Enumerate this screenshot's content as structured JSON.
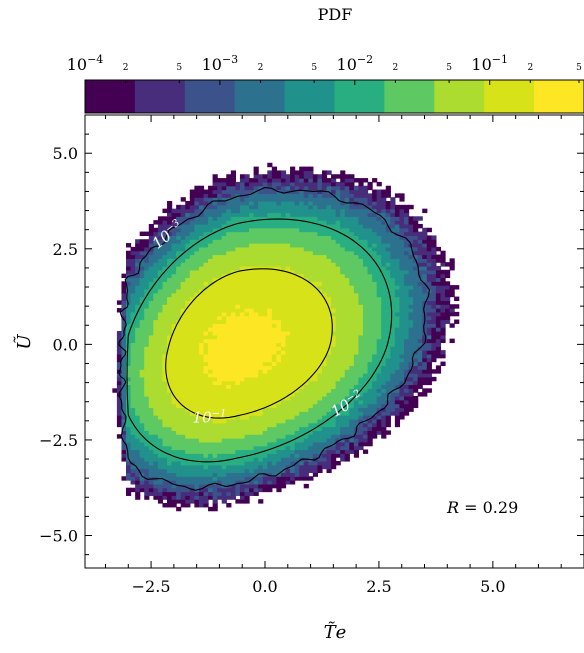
{
  "chart_data": {
    "type": "heatmap",
    "title": "PDF",
    "xlabel": "T̃e",
    "ylabel": "Ũ",
    "xlim": [
      -3.95,
      7.0
    ],
    "ylim": [
      -5.85,
      6.0
    ],
    "x_ticks": [
      -2.5,
      0.0,
      2.5,
      5.0
    ],
    "x_tick_labels": [
      "−2.5",
      "0.0",
      "2.5",
      "5.0"
    ],
    "y_ticks": [
      -5.0,
      -2.5,
      0.0,
      2.5,
      5.0
    ],
    "y_tick_labels": [
      "−5.0",
      "−2.5",
      "0.0",
      "2.5",
      "5.0"
    ],
    "grid": false,
    "colorbar": {
      "label": "PDF",
      "scale": "log",
      "range": [
        0.0001,
        0.5
      ],
      "major_labels": [
        {
          "base": "10",
          "exp": "−4",
          "value": 0.0001
        },
        {
          "base": "10",
          "exp": "−3",
          "value": 0.001
        },
        {
          "base": "10",
          "exp": "−2",
          "value": 0.01
        },
        {
          "base": "10",
          "exp": "−1",
          "value": 0.1
        }
      ],
      "minor_labels": [
        {
          "text": "2",
          "value": 0.0002
        },
        {
          "text": "5",
          "value": 0.0005
        },
        {
          "text": "2",
          "value": 0.002
        },
        {
          "text": "5",
          "value": 0.005
        },
        {
          "text": "2",
          "value": 0.02
        },
        {
          "text": "5",
          "value": 0.05
        },
        {
          "text": "2",
          "value": 0.2
        },
        {
          "text": "5",
          "value": 0.5
        }
      ],
      "colors": [
        "#440154",
        "#472d7b",
        "#3b528b",
        "#2c728e",
        "#21918c",
        "#28ae80",
        "#5ec962",
        "#addc30",
        "#d8e219",
        "#fde725"
      ]
    },
    "distribution": {
      "center": [
        -0.6,
        -0.1
      ],
      "correlation_R": 0.29
    },
    "contour_lines": [
      {
        "level": 0.001,
        "base": "10",
        "exp": "−3"
      },
      {
        "level": 0.01,
        "base": "10",
        "exp": "−2"
      },
      {
        "level": 0.1,
        "base": "10",
        "exp": "−1"
      }
    ],
    "annotation": {
      "var": "R",
      "text": " = 0.29"
    }
  }
}
